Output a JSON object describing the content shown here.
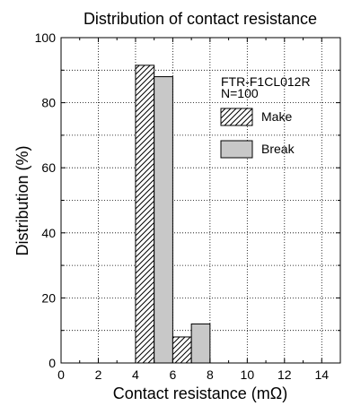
{
  "chart_data": {
    "type": "bar",
    "title": "Distribution of contact resistance",
    "xlabel": "Contact resistance (mΩ)",
    "ylabel": "Distribution (%)",
    "xlim": [
      0,
      15
    ],
    "ylim": [
      0,
      100
    ],
    "x_ticks": [
      "0",
      "2",
      "4",
      "6",
      "8",
      "10",
      "12",
      "14"
    ],
    "y_ticks": [
      "0",
      "20",
      "40",
      "60",
      "80",
      "100"
    ],
    "grid": true,
    "annotation": [
      "FTR-F1CL012R",
      "N=100"
    ],
    "legend_position": "top-right",
    "bins": [
      [
        4,
        6
      ],
      [
        6,
        8
      ]
    ],
    "series": [
      {
        "name": "Make",
        "style": "hatched",
        "color": "#ffffff",
        "values": [
          91.5,
          8
        ]
      },
      {
        "name": "Break",
        "style": "solid",
        "color": "#c8c8c8",
        "values": [
          88,
          12
        ]
      }
    ]
  }
}
